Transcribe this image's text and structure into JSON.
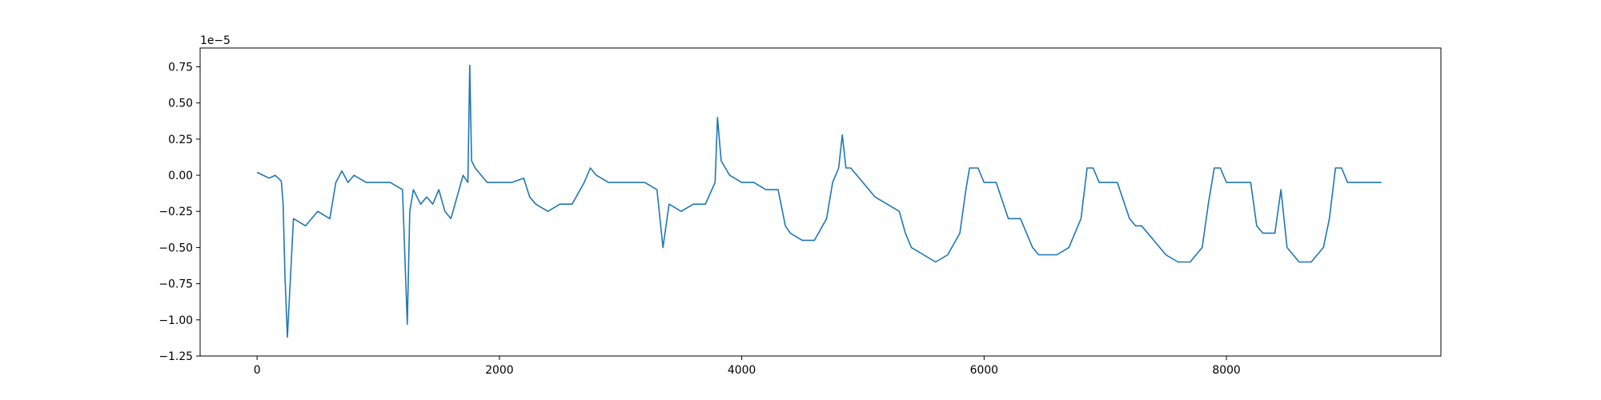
{
  "chart_data": {
    "type": "line",
    "title": "",
    "xlabel": "",
    "ylabel": "",
    "y_offset_label": "1e−5",
    "xlim": [
      -470,
      9770
    ],
    "ylim": [
      -1.25,
      0.88
    ],
    "x_ticks": [
      0,
      2000,
      4000,
      6000,
      8000
    ],
    "x_tick_labels": [
      "0",
      "2000",
      "4000",
      "6000",
      "8000"
    ],
    "y_ticks": [
      -1.25,
      -1.0,
      -0.75,
      -0.5,
      -0.25,
      0.0,
      0.25,
      0.5,
      0.75
    ],
    "y_tick_labels": [
      "−1.25",
      "−1.00",
      "−0.75",
      "−0.50",
      "−0.25",
      "0.00",
      "0.25",
      "0.50",
      "0.75"
    ],
    "grid": false,
    "legend": "none",
    "series": [
      {
        "color": "#1f77b4",
        "x": [
          0,
          50,
          100,
          150,
          200,
          215,
          230,
          250,
          300,
          400,
          500,
          600,
          650,
          700,
          750,
          800,
          900,
          1000,
          1100,
          1200,
          1240,
          1260,
          1290,
          1350,
          1400,
          1450,
          1500,
          1550,
          1600,
          1650,
          1700,
          1740,
          1755,
          1770,
          1800,
          1900,
          2000,
          2100,
          2200,
          2250,
          2300,
          2400,
          2500,
          2600,
          2700,
          2750,
          2800,
          2900,
          3000,
          3100,
          3200,
          3300,
          3350,
          3400,
          3500,
          3600,
          3700,
          3780,
          3800,
          3830,
          3900,
          4000,
          4100,
          4200,
          4300,
          4360,
          4400,
          4500,
          4600,
          4700,
          4750,
          4800,
          4830,
          4860,
          4900,
          5000,
          5100,
          5200,
          5300,
          5350,
          5400,
          5500,
          5600,
          5700,
          5800,
          5850,
          5880,
          5950,
          6000,
          6100,
          6200,
          6250,
          6300,
          6400,
          6450,
          6500,
          6600,
          6700,
          6800,
          6850,
          6900,
          6950,
          7000,
          7100,
          7200,
          7250,
          7300,
          7400,
          7500,
          7600,
          7700,
          7800,
          7850,
          7900,
          7950,
          8000,
          8100,
          8200,
          8250,
          8300,
          8400,
          8450,
          8500,
          8600,
          8700,
          8800,
          8850,
          8900,
          8950,
          9000,
          9100,
          9200,
          9280
        ],
        "y": [
          0.02,
          0.0,
          -0.02,
          0.0,
          -0.04,
          -0.2,
          -0.7,
          -1.12,
          -0.3,
          -0.35,
          -0.25,
          -0.3,
          -0.05,
          0.03,
          -0.05,
          0.0,
          -0.05,
          -0.05,
          -0.05,
          -0.1,
          -1.03,
          -0.25,
          -0.1,
          -0.2,
          -0.15,
          -0.2,
          -0.1,
          -0.25,
          -0.3,
          -0.15,
          0.0,
          -0.05,
          0.76,
          0.1,
          0.05,
          -0.05,
          -0.05,
          -0.05,
          -0.02,
          -0.15,
          -0.2,
          -0.25,
          -0.2,
          -0.2,
          -0.05,
          0.05,
          0.0,
          -0.05,
          -0.05,
          -0.05,
          -0.05,
          -0.1,
          -0.5,
          -0.2,
          -0.25,
          -0.2,
          -0.2,
          -0.05,
          0.4,
          0.1,
          0.0,
          -0.05,
          -0.05,
          -0.1,
          -0.1,
          -0.35,
          -0.4,
          -0.45,
          -0.45,
          -0.3,
          -0.05,
          0.05,
          0.28,
          0.05,
          0.05,
          -0.05,
          -0.15,
          -0.2,
          -0.25,
          -0.4,
          -0.5,
          -0.55,
          -0.6,
          -0.55,
          -0.4,
          -0.1,
          0.05,
          0.05,
          -0.05,
          -0.05,
          -0.3,
          -0.3,
          -0.3,
          -0.5,
          -0.55,
          -0.55,
          -0.55,
          -0.5,
          -0.3,
          0.05,
          0.05,
          -0.05,
          -0.05,
          -0.05,
          -0.3,
          -0.35,
          -0.35,
          -0.45,
          -0.55,
          -0.6,
          -0.6,
          -0.5,
          -0.2,
          0.05,
          0.05,
          -0.05,
          -0.05,
          -0.05,
          -0.35,
          -0.4,
          -0.4,
          -0.1,
          -0.5,
          -0.6,
          -0.6,
          -0.5,
          -0.3,
          0.05,
          0.05,
          -0.05,
          -0.05,
          -0.05,
          -0.05
        ]
      }
    ]
  }
}
